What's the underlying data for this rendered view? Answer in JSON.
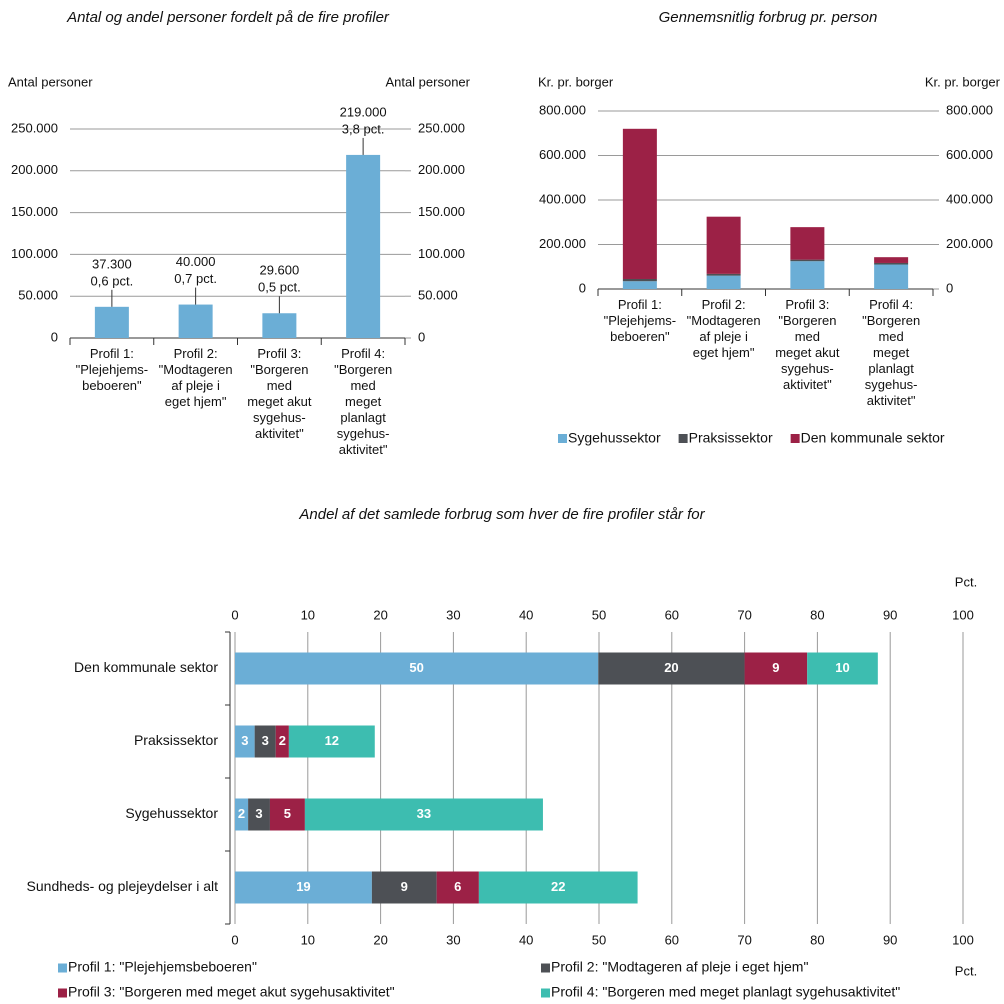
{
  "chart_data": [
    {
      "type": "bar",
      "title": "Antal og andel personer fordelt på de fire profiler",
      "y_label": "Antal personer",
      "y2_label": "Antal personer",
      "categories": [
        [
          "Profil 1:",
          "\"Plejehjems-",
          "beboeren\""
        ],
        [
          "Profil 2:",
          "\"Modtageren",
          "af pleje i",
          "eget hjem\""
        ],
        [
          "Profil 3:",
          "\"Borgeren",
          "med",
          "meget akut",
          "sygehus-",
          "aktivitet\""
        ],
        [
          "Profil 4:",
          "\"Borgeren",
          "med",
          "meget",
          "planlagt",
          "sygehus-",
          "aktivitet\""
        ]
      ],
      "values": [
        37300,
        40000,
        29600,
        219000
      ],
      "value_labels": [
        "37.300",
        "40.000",
        "29.600",
        "219.000"
      ],
      "annotations": [
        "0,6 pct.",
        "0,7 pct.",
        "0,5 pct.",
        "3,8 pct."
      ],
      "color": "#6baed6",
      "ylim": [
        0,
        250000
      ],
      "yticks": [
        0,
        {
          "value": 50000,
          "label": "50.000"
        },
        {
          "value": 100000,
          "label": "100.000"
        },
        {
          "value": 150000,
          "label": "150.000"
        },
        {
          "value": 200000,
          "label": "200.000"
        },
        {
          "value": 250000,
          "label": "250.000"
        }
      ],
      "y2lim": [
        0,
        250000
      ],
      "y2ticks": [
        0,
        {
          "value": 50000,
          "label": "50.000"
        },
        {
          "value": 100000,
          "label": "100.000"
        },
        {
          "value": 150000,
          "label": "150.000"
        },
        {
          "value": 200000,
          "label": "200.000"
        },
        {
          "value": 250000,
          "label": "250.000"
        }
      ],
      "grid": true
    },
    {
      "type": "stacked",
      "title": "Gennemsnitlig forbrug pr. person",
      "y_label": "Kr. pr. borger",
      "y2_label": "Kr. pr. borger",
      "categories": [
        [
          "Profil 1:",
          "\"Plejehjems-",
          "beboeren\""
        ],
        [
          "Profil 2:",
          "\"Modtageren",
          "af pleje i",
          "eget hjem\""
        ],
        [
          "Profil 3:",
          "\"Borgeren",
          "med",
          "meget akut",
          "sygehus-",
          "aktivitet\""
        ],
        [
          "Profil 4:",
          "\"Borgeren",
          "med",
          "meget",
          "planlagt",
          "sygehus-",
          "aktivitet\""
        ]
      ],
      "series": [
        {
          "name": "Sygehussektor",
          "color": "#6baed6",
          "values": [
            35000,
            60000,
            125000,
            110000
          ]
        },
        {
          "name": "Praksissektor",
          "color": "#4d5055",
          "values": [
            10000,
            8000,
            7000,
            7000
          ]
        },
        {
          "name": "Den kommunale sektor",
          "color": "#9c2146",
          "values": [
            675000,
            257000,
            146000,
            26000
          ]
        }
      ],
      "ylim": [
        0,
        800000
      ],
      "yticks": [
        0,
        {
          "value": 200000,
          "label": "200.000"
        },
        {
          "value": 400000,
          "label": "400.000"
        },
        {
          "value": 600000,
          "label": "600.000"
        },
        {
          "value": 800000,
          "label": "800.000"
        }
      ],
      "y2lim": [
        0,
        800000
      ],
      "y2ticks": [
        0,
        {
          "value": 200000,
          "label": "200.000"
        },
        {
          "value": 400000,
          "label": "400.000"
        },
        {
          "value": 600000,
          "label": "600.000"
        },
        {
          "value": 800000,
          "label": "800.000"
        }
      ],
      "grid": true
    },
    {
      "type": "hstacked",
      "title": "Andel af det samlede forbrug som hver de fire profiler står for",
      "x_label": "Pct.",
      "x2_label": "Pct.",
      "categories": [
        "Den kommunale sektor",
        "Praksissektor",
        "Sygehussektor",
        "Sundheds- og plejeydelser i alt"
      ],
      "series": [
        {
          "name": "Profil 1: \"Plejehjemsbeboeren\"",
          "color": "#6baed6",
          "values": [
            49.9,
            2.7,
            1.8,
            18.8
          ],
          "value_labels": [
            "50",
            "3",
            "2",
            "19"
          ]
        },
        {
          "name": "Profil 2: \"Modtageren af pleje i eget hjem\"",
          "color": "#4d5055",
          "values": [
            20.1,
            2.9,
            3.0,
            8.9
          ],
          "value_labels": [
            "20",
            "3",
            "3",
            "9"
          ]
        },
        {
          "name": "Profil 3: \"Borgeren med meget akut sygehusaktivitet\"",
          "color": "#9c2146",
          "values": [
            8.6,
            1.8,
            4.8,
            5.8
          ],
          "value_labels": [
            "9",
            "2",
            "5",
            "6"
          ]
        },
        {
          "name": "Profil 4: \"Borgeren med meget planlagt sygehusaktivitet\"",
          "color": "#3dbdb0",
          "values": [
            9.7,
            11.8,
            32.7,
            21.8
          ],
          "value_labels": [
            "10",
            "12",
            "33",
            "22"
          ]
        }
      ],
      "xlim": [
        0,
        100
      ],
      "xticks": [
        0,
        10,
        20,
        30,
        40,
        50,
        60,
        70,
        80,
        90,
        100
      ],
      "grid": true
    }
  ]
}
